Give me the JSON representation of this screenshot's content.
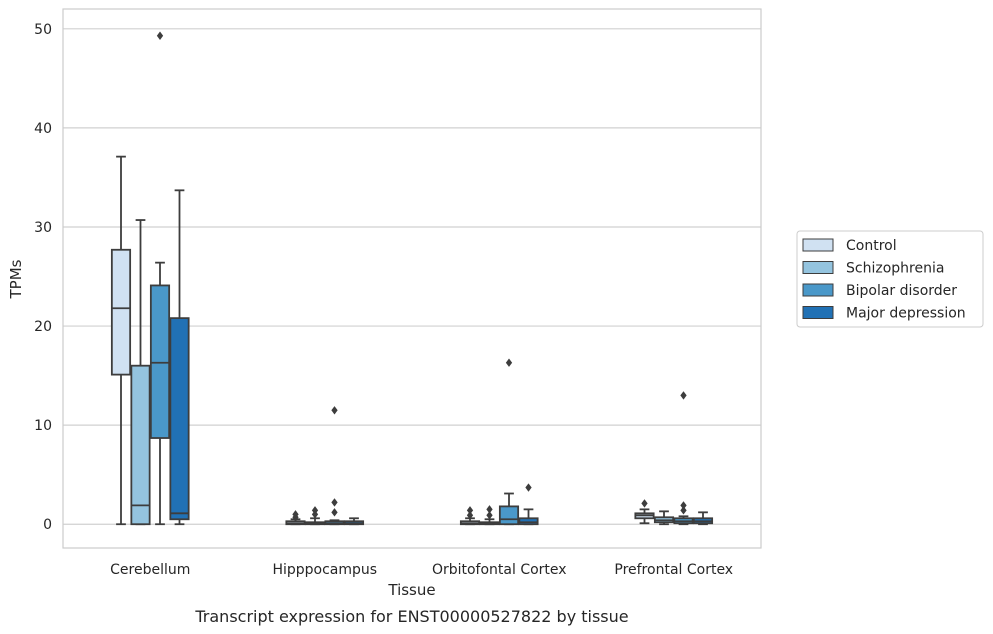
{
  "chart_data": {
    "type": "boxplot",
    "caption": "Transcript expression for ENST00000527822 by tissue",
    "xlabel": "Tissue",
    "ylabel": "TPMs",
    "ylim": [
      -2.4,
      52
    ],
    "yticks": [
      0,
      10,
      20,
      30,
      40,
      50
    ],
    "grid": true,
    "legend_position": "right",
    "categories": [
      "Cerebellum",
      "Hipppocampus",
      "Orbitofontal Cortex",
      "Prefrontal Cortex"
    ],
    "series": [
      {
        "name": "Control",
        "color": "#d0e1f2",
        "boxes": [
          {
            "whislo": 0.0,
            "q1": 15.1,
            "med": 21.8,
            "q3": 27.7,
            "whishi": 37.1,
            "fliers": []
          },
          {
            "whislo": 0.0,
            "q1": 0.0,
            "med": 0.1,
            "q3": 0.3,
            "whishi": 0.5,
            "fliers": [
              0.7,
              1.0
            ]
          },
          {
            "whislo": 0.0,
            "q1": 0.0,
            "med": 0.1,
            "q3": 0.3,
            "whishi": 0.6,
            "fliers": [
              0.9,
              1.4
            ]
          },
          {
            "whislo": 0.1,
            "q1": 0.6,
            "med": 0.9,
            "q3": 1.1,
            "whishi": 1.5,
            "fliers": [
              2.1
            ]
          }
        ]
      },
      {
        "name": "Schizophrenia",
        "color": "#94c4df",
        "boxes": [
          {
            "whislo": 0.0,
            "q1": 0.0,
            "med": 1.9,
            "q3": 16.0,
            "whishi": 30.7,
            "fliers": []
          },
          {
            "whislo": 0.0,
            "q1": 0.0,
            "med": 0.1,
            "q3": 0.2,
            "whishi": 0.6,
            "fliers": [
              1.0,
              1.4
            ]
          },
          {
            "whislo": 0.0,
            "q1": 0.0,
            "med": 0.1,
            "q3": 0.2,
            "whishi": 0.5,
            "fliers": [
              0.9,
              1.5
            ]
          },
          {
            "whislo": 0.0,
            "q1": 0.2,
            "med": 0.4,
            "q3": 0.7,
            "whishi": 1.3,
            "fliers": []
          }
        ]
      },
      {
        "name": "Bipolar disorder",
        "color": "#4a98c9",
        "boxes": [
          {
            "whislo": 0.0,
            "q1": 8.7,
            "med": 16.3,
            "q3": 24.1,
            "whishi": 26.4,
            "fliers": [
              49.3
            ]
          },
          {
            "whislo": 0.0,
            "q1": 0.0,
            "med": 0.1,
            "q3": 0.3,
            "whishi": 0.4,
            "fliers": [
              1.2,
              2.2,
              11.5
            ]
          },
          {
            "whislo": 0.0,
            "q1": 0.0,
            "med": 0.5,
            "q3": 1.8,
            "whishi": 3.1,
            "fliers": [
              16.3
            ]
          },
          {
            "whislo": 0.0,
            "q1": 0.1,
            "med": 0.3,
            "q3": 0.6,
            "whishi": 0.8,
            "fliers": [
              1.4,
              1.9,
              13.0
            ]
          }
        ]
      },
      {
        "name": "Major depression",
        "color": "#2171b5",
        "boxes": [
          {
            "whislo": 0.0,
            "q1": 0.5,
            "med": 1.1,
            "q3": 20.8,
            "whishi": 33.7,
            "fliers": []
          },
          {
            "whislo": 0.0,
            "q1": 0.0,
            "med": 0.1,
            "q3": 0.3,
            "whishi": 0.6,
            "fliers": []
          },
          {
            "whislo": 0.0,
            "q1": 0.0,
            "med": 0.2,
            "q3": 0.6,
            "whishi": 1.5,
            "fliers": [
              3.7
            ]
          },
          {
            "whislo": 0.0,
            "q1": 0.1,
            "med": 0.3,
            "q3": 0.6,
            "whishi": 1.2,
            "fliers": []
          }
        ]
      }
    ]
  }
}
